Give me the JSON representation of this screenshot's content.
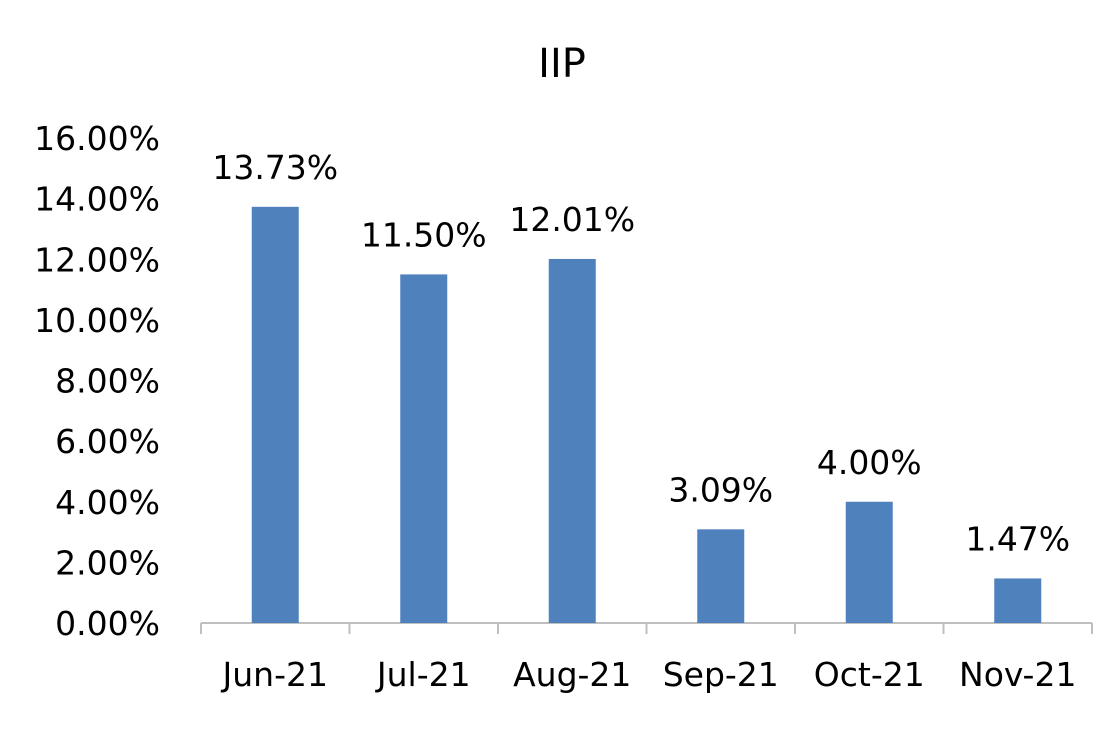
{
  "chart_data": {
    "type": "bar",
    "title": "IIP",
    "xlabel": "",
    "ylabel": "",
    "categories": [
      "Jun-21",
      "Jul-21",
      "Aug-21",
      "Sep-21",
      "Oct-21",
      "Nov-21"
    ],
    "values": [
      13.73,
      11.5,
      12.01,
      3.09,
      4.0,
      1.47
    ],
    "data_labels": [
      "13.73%",
      "11.50%",
      "12.01%",
      "3.09%",
      "4.00%",
      "1.47%"
    ],
    "ylim": [
      0,
      16
    ],
    "y_ticks": [
      0,
      2,
      4,
      6,
      8,
      10,
      12,
      14,
      16
    ],
    "y_tick_labels": [
      "0.00%",
      "2.00%",
      "4.00%",
      "6.00%",
      "8.00%",
      "10.00%",
      "12.00%",
      "14.00%",
      "16.00%"
    ],
    "grid": false,
    "legend": "none",
    "bar_color": "#4F81BD",
    "axis_color": "#BFBFBF"
  }
}
